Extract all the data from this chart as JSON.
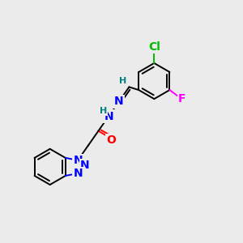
{
  "background_color": "#ebebeb",
  "atom_colors": {
    "N": "#0000ff",
    "O": "#ff0000",
    "Cl": "#00bb00",
    "F": "#ff00ff",
    "H": "#008080",
    "C": "#000000"
  },
  "font_size_atoms": 10,
  "font_size_small": 8,
  "lw": 1.4
}
